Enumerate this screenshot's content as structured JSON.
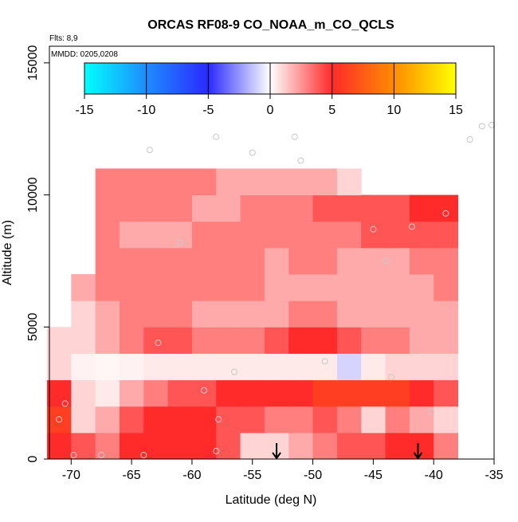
{
  "chart_data": {
    "type": "heatmap",
    "title": "ORCAS RF08-9 CO_NOAA_m_CO_QCLS",
    "note_flights": "Flts: 8,9",
    "note_dates": "MMDD: 0205,0208",
    "xlabel": "Latitude (deg N)",
    "ylabel": "Altitude (m)",
    "xlim": [
      -71.8,
      -35
    ],
    "ylim": [
      0,
      15630
    ],
    "xticks": [
      -70,
      -65,
      -60,
      -55,
      -50,
      -45,
      -40,
      -35
    ],
    "yticks": [
      0,
      5000,
      10000,
      15000
    ],
    "xbins": [
      -72,
      -70,
      -68,
      -66,
      -64,
      -62,
      -60,
      -58,
      -56,
      -54,
      -52,
      -50,
      -48,
      -46,
      -44,
      -42,
      -40,
      -38
    ],
    "ybins": [
      0,
      1000,
      2000,
      3000,
      4000,
      5000,
      6000,
      7000,
      8000,
      9000,
      10000,
      11000
    ],
    "z": [
      [
        5,
        4,
        3,
        5,
        5,
        5,
        5,
        4,
        1,
        1,
        2,
        3,
        4,
        4,
        5,
        5,
        3
      ],
      [
        6,
        1,
        2,
        4,
        5,
        5,
        5,
        4,
        4,
        3,
        3,
        4,
        3,
        1,
        3,
        2,
        1
      ],
      [
        5,
        1,
        0.5,
        2,
        3,
        4,
        4,
        5,
        5,
        5,
        5,
        6,
        6,
        6,
        6,
        5,
        4
      ],
      [
        1,
        0.3,
        0.2,
        0.3,
        0.5,
        0.5,
        0.5,
        0.5,
        0.5,
        0.5,
        0.5,
        0.5,
        -1,
        0.5,
        1,
        1,
        1
      ],
      [
        1,
        1,
        2,
        3,
        4,
        4,
        3,
        3,
        3,
        4,
        5,
        5,
        4,
        3,
        3,
        2,
        2
      ],
      [
        null,
        1,
        2,
        3,
        3,
        3,
        2,
        2,
        2,
        2,
        3,
        3,
        2,
        2,
        2,
        2,
        2
      ],
      [
        null,
        2,
        3,
        3,
        3,
        3,
        3,
        3,
        3,
        2,
        2,
        2,
        2,
        2,
        2,
        2,
        3
      ],
      [
        null,
        null,
        3,
        3,
        3,
        3,
        3,
        3,
        3,
        2,
        3,
        3,
        2,
        2,
        2,
        3,
        3
      ],
      [
        null,
        null,
        3,
        2,
        2,
        2,
        3,
        3,
        3,
        3,
        3,
        3,
        3,
        4,
        4,
        4,
        4
      ],
      [
        null,
        null,
        3,
        3,
        3,
        3,
        2,
        2,
        3,
        3,
        3,
        4,
        4,
        4,
        4,
        5,
        5
      ],
      [
        null,
        null,
        3,
        3,
        3,
        3,
        3,
        2,
        2,
        2,
        2,
        2,
        1,
        null,
        null,
        null,
        null
      ]
    ],
    "clim": [
      -15,
      15
    ],
    "colors": [
      "#00ffff",
      "#1e8cff",
      "#2a2aff",
      "#ffffff",
      "#ff2a2a",
      "#ff8c00",
      "#ffff00"
    ],
    "colorbar_ticks": [
      -15,
      -10,
      -5,
      0,
      5,
      10,
      15
    ],
    "points": {
      "color": "#c8c8c8",
      "x": [
        -71,
        -70.5,
        -69.8,
        -67.5,
        -64,
        -58,
        -57.8,
        -56.5,
        -59,
        -62.8,
        -63.5,
        -61,
        -58,
        -55,
        -51.5,
        -51,
        -49,
        -45,
        -44,
        -43.5,
        -41.8,
        -40.2,
        -39,
        -37,
        -36,
        -35.2
      ],
      "y": [
        1500,
        2100,
        150,
        150,
        150,
        300,
        1500,
        3300,
        2600,
        4400,
        11700,
        8200,
        12200,
        11600,
        12200,
        11300,
        3700,
        8700,
        7500,
        3100,
        8800,
        1800,
        9300,
        12100,
        12600,
        12650
      ]
    },
    "arrows_x": [
      -53,
      -41.3
    ]
  }
}
